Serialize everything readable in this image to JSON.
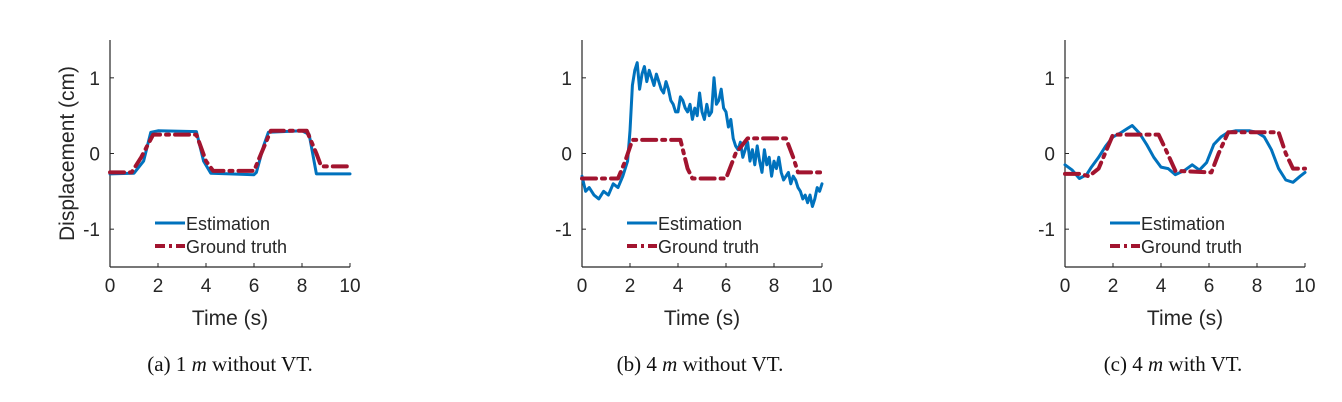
{
  "colors": {
    "estimation": "#0072BD",
    "ground_truth": "#A2142F",
    "axis": "#262626"
  },
  "captions": [
    {
      "prefix": "(a) 1 ",
      "unit": "m",
      "suffix": " without VT."
    },
    {
      "prefix": "(b) 4 ",
      "unit": "m",
      "suffix": " without VT."
    },
    {
      "prefix": "(c) 4 ",
      "unit": "m",
      "suffix": " with VT."
    }
  ],
  "chart_data": [
    {
      "type": "line",
      "xlabel": "Time (s)",
      "ylabel": "Displacement (cm)",
      "xlim": [
        0,
        10
      ],
      "ylim": [
        -1.5,
        1.5
      ],
      "xticks": [
        0,
        2,
        4,
        6,
        8,
        10
      ],
      "yticks": [
        -1,
        0,
        1
      ],
      "grid": false,
      "legend": "bottom-center",
      "series": [
        {
          "name": "Estimation",
          "style": "solid",
          "x": [
            0,
            1.0,
            1.4,
            1.7,
            2.0,
            3.6,
            3.9,
            4.2,
            5.0,
            6.0,
            6.1,
            6.4,
            6.6,
            8.0,
            8.3,
            8.6,
            10
          ],
          "y": [
            -0.27,
            -0.26,
            -0.1,
            0.28,
            0.3,
            0.29,
            -0.1,
            -0.26,
            -0.27,
            -0.28,
            -0.25,
            0.1,
            0.28,
            0.3,
            0.25,
            -0.27,
            -0.27
          ]
        },
        {
          "name": "Ground truth",
          "style": "dash-dot",
          "x": [
            0,
            0.9,
            1.3,
            1.8,
            3.6,
            4.0,
            4.3,
            6.0,
            6.3,
            6.7,
            8.2,
            8.6,
            8.8,
            10
          ],
          "y": [
            -0.25,
            -0.25,
            -0.05,
            0.25,
            0.25,
            -0.1,
            -0.23,
            -0.23,
            0.0,
            0.3,
            0.3,
            0.0,
            -0.17,
            -0.17
          ]
        }
      ]
    },
    {
      "type": "line",
      "xlabel": "Time (s)",
      "ylabel": "",
      "xlim": [
        0,
        10
      ],
      "ylim": [
        -1.5,
        1.5
      ],
      "xticks": [
        0,
        2,
        4,
        6,
        8,
        10
      ],
      "yticks": [
        -1,
        0,
        1
      ],
      "grid": false,
      "legend": "bottom-center",
      "series": [
        {
          "name": "Estimation",
          "style": "solid",
          "x": [
            0,
            0.15,
            0.3,
            0.5,
            0.7,
            0.9,
            1.1,
            1.3,
            1.5,
            1.7,
            1.9,
            2.0,
            2.1,
            2.2,
            2.3,
            2.4,
            2.5,
            2.6,
            2.7,
            2.8,
            2.9,
            3.0,
            3.1,
            3.2,
            3.3,
            3.4,
            3.5,
            3.6,
            3.7,
            3.8,
            3.9,
            4.0,
            4.1,
            4.2,
            4.3,
            4.4,
            4.5,
            4.6,
            4.7,
            4.8,
            4.9,
            5.0,
            5.1,
            5.2,
            5.3,
            5.4,
            5.5,
            5.6,
            5.7,
            5.8,
            5.9,
            6.0,
            6.1,
            6.2,
            6.3,
            6.4,
            6.5,
            6.6,
            6.7,
            6.8,
            6.9,
            7.0,
            7.1,
            7.2,
            7.3,
            7.4,
            7.5,
            7.6,
            7.7,
            7.8,
            7.9,
            8.0,
            8.1,
            8.2,
            8.3,
            8.4,
            8.5,
            8.6,
            8.7,
            8.8,
            8.9,
            9.0,
            9.1,
            9.2,
            9.3,
            9.4,
            9.5,
            9.6,
            9.7,
            9.8,
            9.9,
            10.0
          ],
          "y": [
            -0.3,
            -0.5,
            -0.45,
            -0.55,
            -0.6,
            -0.5,
            -0.55,
            -0.4,
            -0.45,
            -0.3,
            -0.1,
            0.3,
            0.9,
            1.1,
            1.2,
            0.85,
            1.05,
            1.15,
            0.95,
            1.1,
            1.0,
            0.9,
            1.05,
            0.95,
            0.85,
            0.8,
            0.95,
            0.85,
            0.7,
            0.65,
            0.55,
            0.55,
            0.75,
            0.7,
            0.6,
            0.55,
            0.65,
            0.45,
            0.6,
            0.5,
            0.8,
            0.55,
            0.45,
            0.65,
            0.5,
            0.55,
            1.0,
            0.65,
            0.7,
            0.85,
            0.6,
            0.55,
            0.35,
            0.45,
            0.2,
            0.1,
            0.05,
            0.15,
            -0.05,
            0.05,
            0.15,
            -0.1,
            0.05,
            -0.15,
            0.1,
            -0.1,
            -0.25,
            0.05,
            -0.15,
            -0.05,
            -0.3,
            -0.1,
            -0.2,
            -0.05,
            -0.25,
            -0.35,
            -0.3,
            -0.25,
            -0.4,
            -0.3,
            -0.35,
            -0.45,
            -0.5,
            -0.6,
            -0.55,
            -0.65,
            -0.55,
            -0.7,
            -0.6,
            -0.45,
            -0.5,
            -0.4
          ]
        },
        {
          "name": "Ground truth",
          "style": "dash-dot",
          "x": [
            0,
            1.5,
            1.8,
            2.1,
            4.1,
            4.4,
            4.6,
            6.0,
            6.4,
            6.9,
            8.5,
            8.8,
            9.0,
            10
          ],
          "y": [
            -0.33,
            -0.33,
            -0.1,
            0.18,
            0.18,
            -0.2,
            -0.33,
            -0.33,
            0.0,
            0.2,
            0.2,
            -0.05,
            -0.25,
            -0.25
          ]
        }
      ]
    },
    {
      "type": "line",
      "xlabel": "Time (s)",
      "ylabel": "",
      "xlim": [
        0,
        10
      ],
      "ylim": [
        -1.5,
        1.5
      ],
      "xticks": [
        0,
        2,
        4,
        6,
        8,
        10
      ],
      "yticks": [
        -1,
        0,
        1
      ],
      "grid": false,
      "legend": "bottom-center",
      "series": [
        {
          "name": "Estimation",
          "style": "solid",
          "x": [
            0,
            0.3,
            0.6,
            0.9,
            1.1,
            1.4,
            1.7,
            2.0,
            2.3,
            2.6,
            2.8,
            3.1,
            3.4,
            3.7,
            4.0,
            4.3,
            4.6,
            5.0,
            5.3,
            5.6,
            5.9,
            6.2,
            6.5,
            6.8,
            7.1,
            7.4,
            7.7,
            8.0,
            8.3,
            8.6,
            8.9,
            9.2,
            9.5,
            9.8,
            10
          ],
          "y": [
            -0.15,
            -0.22,
            -0.33,
            -0.28,
            -0.18,
            -0.05,
            0.1,
            0.22,
            0.27,
            0.33,
            0.37,
            0.27,
            0.12,
            -0.05,
            -0.18,
            -0.2,
            -0.28,
            -0.22,
            -0.15,
            -0.22,
            -0.12,
            0.12,
            0.22,
            0.28,
            0.3,
            0.3,
            0.3,
            0.28,
            0.22,
            0.05,
            -0.2,
            -0.35,
            -0.38,
            -0.3,
            -0.25
          ]
        },
        {
          "name": "Ground truth",
          "style": "dash-dot",
          "x": [
            0,
            0.6,
            1.0,
            1.4,
            2.0,
            3.9,
            4.2,
            4.6,
            6.1,
            6.4,
            6.8,
            8.9,
            9.2,
            9.5,
            10
          ],
          "y": [
            -0.27,
            -0.27,
            -0.3,
            -0.2,
            0.25,
            0.25,
            0.05,
            -0.23,
            -0.25,
            0.0,
            0.28,
            0.28,
            0.0,
            -0.2,
            -0.2
          ]
        }
      ]
    }
  ]
}
